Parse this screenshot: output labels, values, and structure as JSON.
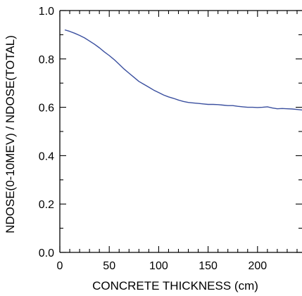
{
  "chart_data": {
    "type": "line",
    "title": "",
    "xlabel": "CONCRETE THICKNESS (cm)",
    "ylabel": "NDOSE(0-10MEV) / NDOSE(TOTAL)",
    "xlim": [
      0,
      245
    ],
    "ylim": [
      0.0,
      1.0
    ],
    "xticks": [
      0,
      50,
      100,
      150,
      200
    ],
    "xtick_labels": [
      "0",
      "50",
      "100",
      "150",
      "200"
    ],
    "yticks": [
      0.0,
      0.2,
      0.4,
      0.6,
      0.8,
      1.0
    ],
    "ytick_labels": [
      "0.0",
      "0.2",
      "0.4",
      "0.6",
      "0.8",
      "1.0"
    ],
    "grid": false,
    "legend": "none",
    "series": [
      {
        "color": "#3a4f9f",
        "x": [
          5,
          10,
          15,
          20,
          25,
          30,
          35,
          40,
          45,
          50,
          55,
          60,
          65,
          70,
          75,
          80,
          85,
          90,
          95,
          100,
          105,
          110,
          115,
          120,
          125,
          130,
          135,
          140,
          145,
          150,
          155,
          160,
          165,
          170,
          175,
          180,
          185,
          190,
          195,
          200,
          205,
          210,
          215,
          220,
          225,
          230,
          235,
          240,
          245
        ],
        "y": [
          0.92,
          0.914,
          0.906,
          0.897,
          0.887,
          0.874,
          0.861,
          0.846,
          0.829,
          0.814,
          0.797,
          0.778,
          0.758,
          0.741,
          0.724,
          0.707,
          0.695,
          0.683,
          0.671,
          0.661,
          0.651,
          0.643,
          0.637,
          0.63,
          0.624,
          0.62,
          0.618,
          0.616,
          0.614,
          0.612,
          0.612,
          0.611,
          0.609,
          0.607,
          0.607,
          0.604,
          0.602,
          0.6,
          0.6,
          0.599,
          0.6,
          0.602,
          0.597,
          0.594,
          0.595,
          0.594,
          0.593,
          0.591,
          0.589
        ]
      }
    ]
  }
}
